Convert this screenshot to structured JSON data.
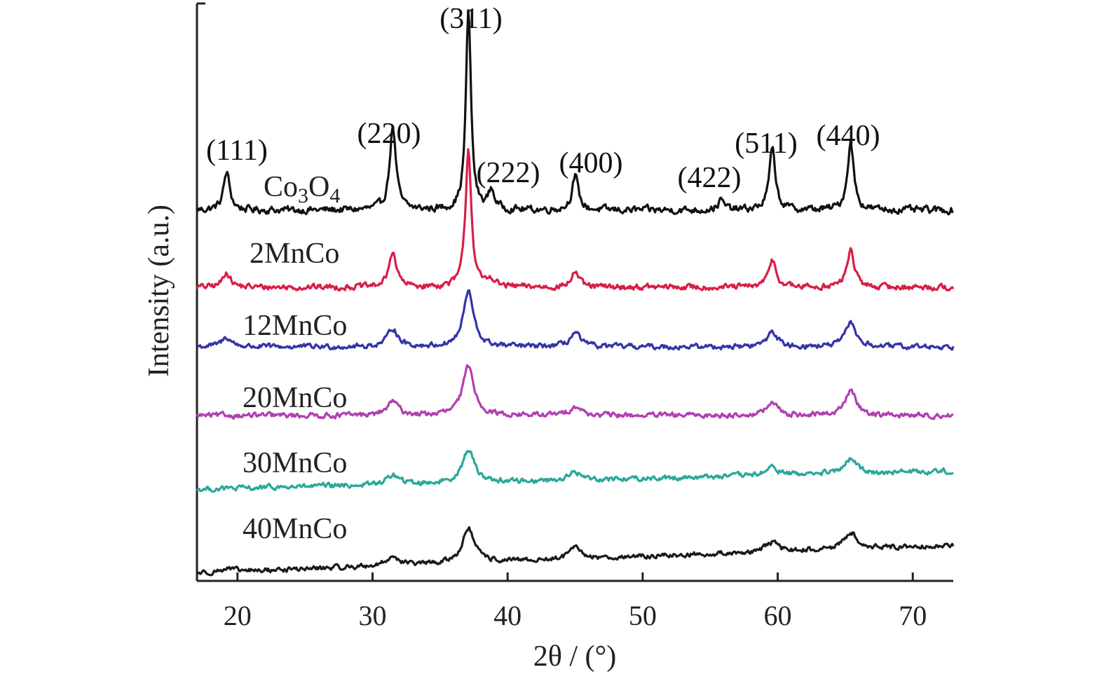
{
  "chart_data": {
    "type": "line",
    "title": "",
    "xlabel": "2θ / (°)",
    "ylabel": "Intensity (a.u.)",
    "xlim": [
      17,
      73
    ],
    "xticks": [
      20,
      30,
      40,
      50,
      60,
      70
    ],
    "xtick_labels": [
      "20",
      "30",
      "40",
      "50",
      "60",
      "70"
    ],
    "yticks_shown": false,
    "grid": false,
    "legend": "none",
    "peaks": [
      {
        "label": "(111)",
        "x": 19.2
      },
      {
        "label": "(220)",
        "x": 31.5
      },
      {
        "label": "(311)",
        "x": 37.1
      },
      {
        "label": "(222)",
        "x": 38.8
      },
      {
        "label": "(400)",
        "x": 45.0
      },
      {
        "label": "(422)",
        "x": 55.8
      },
      {
        "label": "(511)",
        "x": 59.6
      },
      {
        "label": "(440)",
        "x": 65.4
      }
    ],
    "series": [
      {
        "name": "Co3O4",
        "label_parts": {
          "base": "Co",
          "sub1": "3",
          "mid": "O",
          "sub2": "4"
        },
        "color": "#111111",
        "baseline": 0.0,
        "noise": 1.6,
        "slope": 0.0,
        "offset_rank": 0,
        "peak_heights": {
          "19.2": 10.0,
          "31.5": 22.0,
          "37.1": 53.0,
          "38.8": 5.0,
          "45.0": 9.0,
          "55.8": 2.5,
          "59.6": 16.0,
          "65.4": 18.0
        },
        "width": 0.28
      },
      {
        "name": "2MnCo",
        "color": "#d81e47",
        "baseline": 0.0,
        "noise": 1.6,
        "slope": 0.0,
        "offset_rank": 1,
        "peak_heights": {
          "19.2": 5.0,
          "31.5": 11.5,
          "37.1": 44.0,
          "38.8": 2.5,
          "45.0": 5.0,
          "59.6": 9.0,
          "65.4": 12.0
        },
        "width": 0.32
      },
      {
        "name": "12MnCo",
        "color": "#3434a8",
        "baseline": 0.0,
        "noise": 1.4,
        "slope": 0.0,
        "offset_rank": 2,
        "peak_heights": {
          "19.2": 3.0,
          "31.5": 6.0,
          "37.1": 18.0,
          "45.0": 4.5,
          "59.6": 5.0,
          "65.4": 8.0
        },
        "width": 0.45
      },
      {
        "name": "20MnCo",
        "color": "#b040b0",
        "baseline": 0.0,
        "noise": 1.4,
        "slope": 0.0,
        "offset_rank": 3,
        "peak_heights": {
          "31.5": 4.5,
          "37.1": 16.0,
          "45.0": 3.0,
          "59.6": 4.0,
          "65.4": 8.0
        },
        "width": 0.5
      },
      {
        "name": "30MnCo",
        "color": "#2aa89a",
        "baseline": -6.0,
        "noise": 1.4,
        "slope": 0.28,
        "offset_rank": 4,
        "peak_heights": {
          "31.5": 3.0,
          "37.1": 10.5,
          "45.0": 2.5,
          "59.6": 2.5,
          "65.4": 4.5
        },
        "width": 0.55
      },
      {
        "name": "40MnCo",
        "color": "#1a1a1a",
        "baseline": -9.0,
        "noise": 1.3,
        "slope": 0.38,
        "offset_rank": 5,
        "peak_heights": {
          "19.2": 1.0,
          "31.5": 3.0,
          "37.1": 11.0,
          "45.0": 3.5,
          "59.6": 3.0,
          "65.4": 5.5
        },
        "width": 0.55
      }
    ]
  }
}
